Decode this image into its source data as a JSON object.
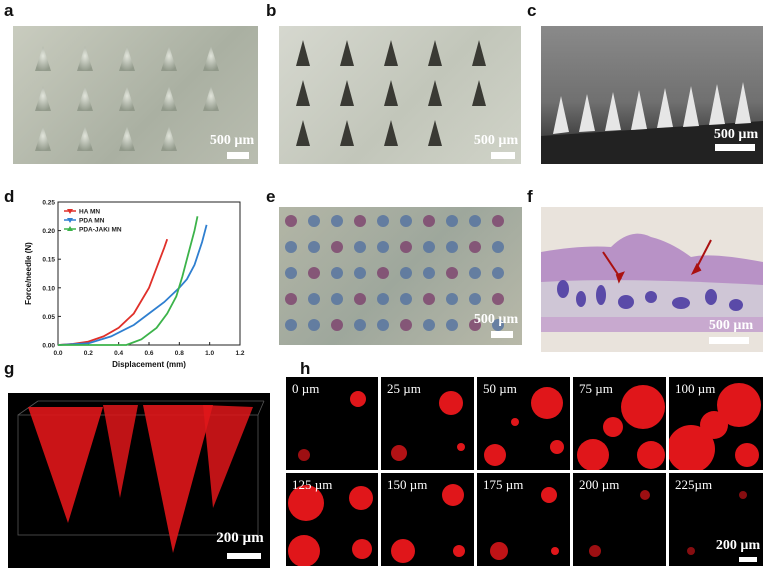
{
  "panels": {
    "a": {
      "label": "a",
      "scale": "500 µm"
    },
    "b": {
      "label": "b",
      "scale": "500 µm"
    },
    "c": {
      "label": "c",
      "scale": "500 µm"
    },
    "d": {
      "label": "d"
    },
    "e": {
      "label": "e",
      "scale": "500 µm"
    },
    "f": {
      "label": "f",
      "scale": "500 µm"
    },
    "g": {
      "label": "g",
      "scale": "200 µm"
    },
    "h": {
      "label": "h",
      "scale": "200 µm",
      "depths": [
        "0 µm",
        "25 µm",
        "50 µm",
        "75 µm",
        "100 µm",
        "125 µm",
        "150 µm",
        "175 µm",
        "200 µm",
        "225µm"
      ]
    }
  },
  "chart_data": {
    "type": "line",
    "xlabel": "Displacement (mm)",
    "ylabel": "Force/needle (N)",
    "xlim": [
      0.0,
      1.2
    ],
    "ylim": [
      0.0,
      0.25
    ],
    "xticks": [
      "0.0",
      "0.2",
      "0.4",
      "0.6",
      "0.8",
      "1.0",
      "1.2"
    ],
    "yticks": [
      "0.00",
      "0.05",
      "0.10",
      "0.15",
      "0.20",
      "0.25"
    ],
    "legend": "top-left",
    "series": [
      {
        "name": "HA MN",
        "color": "#e0302a",
        "marker": "down-triangle",
        "x": [
          0.0,
          0.1,
          0.2,
          0.3,
          0.4,
          0.5,
          0.6,
          0.65,
          0.7,
          0.72
        ],
        "y": [
          0.0,
          0.002,
          0.006,
          0.015,
          0.03,
          0.055,
          0.1,
          0.135,
          0.17,
          0.185
        ]
      },
      {
        "name": "PDA MN",
        "color": "#2f7fd0",
        "marker": "down-triangle",
        "x": [
          0.0,
          0.2,
          0.35,
          0.5,
          0.6,
          0.7,
          0.8,
          0.85,
          0.9,
          0.95,
          0.98
        ],
        "y": [
          0.0,
          0.003,
          0.015,
          0.035,
          0.055,
          0.075,
          0.1,
          0.115,
          0.14,
          0.18,
          0.21
        ]
      },
      {
        "name": "PDA-JAKi MN",
        "color": "#3cb34a",
        "marker": "up-triangle",
        "x": [
          0.0,
          0.45,
          0.55,
          0.65,
          0.72,
          0.78,
          0.82,
          0.86,
          0.9,
          0.92
        ],
        "y": [
          0.0,
          0.0,
          0.01,
          0.03,
          0.055,
          0.085,
          0.12,
          0.16,
          0.2,
          0.225
        ]
      }
    ]
  }
}
